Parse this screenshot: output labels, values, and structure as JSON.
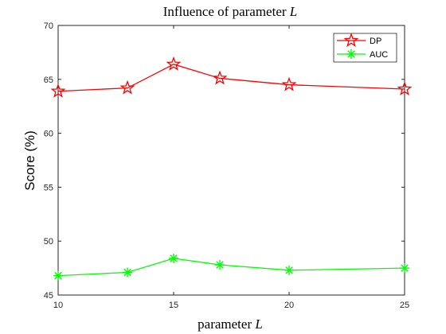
{
  "chart_data": {
    "type": "line",
    "title": "Influence of parameter L",
    "title_prefix": "Influence of parameter ",
    "title_var": "L",
    "xlabel": "parameter L",
    "xlabel_prefix": "parameter ",
    "xlabel_var": "L",
    "ylabel": "Score (%)",
    "x": [
      10,
      13,
      15,
      17,
      20,
      25
    ],
    "xlim": [
      10,
      25
    ],
    "ylim": [
      45,
      70
    ],
    "xticks": [
      10,
      15,
      20,
      25
    ],
    "yticks": [
      45,
      50,
      55,
      60,
      65,
      70
    ],
    "grid": false,
    "legend_position": "top-right",
    "series": [
      {
        "name": "DP",
        "values": [
          63.9,
          64.2,
          66.4,
          65.1,
          64.5,
          64.1
        ],
        "color": "#ff0000",
        "marker": "star"
      },
      {
        "name": "AUC",
        "values": [
          46.8,
          47.1,
          48.4,
          47.8,
          47.3,
          47.5
        ],
        "color": "#00ff00",
        "marker": "asterisk"
      }
    ]
  }
}
